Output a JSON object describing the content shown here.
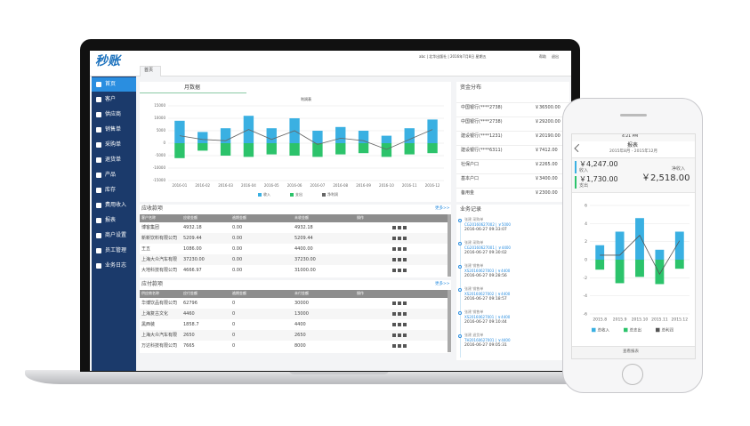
{
  "laptop": {
    "logo": "秒账",
    "tab": "首页",
    "topbar": "abc | 北华出版社 | 2016年7月8日 星期五",
    "links": [
      "帮助",
      "退出"
    ],
    "nav": [
      "首页",
      "客户",
      "供应商",
      "销售单",
      "采购单",
      "退货单",
      "产品",
      "库存",
      "费用收入",
      "报表",
      "商户设置",
      "员工管理",
      "业务日志"
    ],
    "monthly": {
      "title": "月数据",
      "chart": {
        "type": "bar",
        "title": "利润表",
        "categories": [
          "2016-01",
          "2016-02",
          "2016-03",
          "2016-04",
          "2016-05",
          "2016-06",
          "2016-07",
          "2016-08",
          "2016-09",
          "2016-10",
          "2016-11",
          "2016-12"
        ],
        "series": [
          {
            "name": "收入",
            "color": "#3ab0e2",
            "type": "bar",
            "values": [
              9000,
              4500,
              6000,
              11000,
              6000,
              10000,
              5000,
              6500,
              5000,
              3000,
              6000,
              9500
            ]
          },
          {
            "name": "支出",
            "color": "#2cc36b",
            "type": "bar",
            "values": [
              -6000,
              -3000,
              -5000,
              -5500,
              -4500,
              -5000,
              -5500,
              -4500,
              -4000,
              -5500,
              -4500,
              -4000
            ]
          },
          {
            "name": "净利润",
            "color": "#666666",
            "type": "line",
            "values": [
              3000,
              1500,
              1000,
              5500,
              1500,
              5000,
              -500,
              2000,
              1000,
              -2500,
              1500,
              5500
            ]
          }
        ],
        "ylim": [
          -15000,
          15000
        ],
        "yticks": [
          -15000,
          -10000,
          -5000,
          0,
          5000,
          10000,
          15000
        ],
        "grid": true
      }
    },
    "funds": {
      "title": "资金分布",
      "rows": [
        [
          "中国银行(****2738)",
          "￥36500.00"
        ],
        [
          "中国银行(****2738)",
          "￥29200.00"
        ],
        [
          "建设银行(****1231)",
          "￥20190.00"
        ],
        [
          "建设银行(****6311)",
          "￥7412.00"
        ],
        [
          "社保户口",
          "￥2265.00"
        ],
        [
          "基本户口",
          "￥3400.00"
        ],
        [
          "备用金",
          "￥2300.00"
        ]
      ]
    },
    "receivable": {
      "title": "应收款项",
      "more": "更多>>",
      "headers": [
        "客户名称",
        "应收金额",
        "逾期金额",
        "未收金额",
        "操作"
      ],
      "rows": [
        [
          "博客集团",
          "4932.18",
          "0.00",
          "4932.18"
        ],
        [
          "新新饮料有限公司",
          "5209.44",
          "0.00",
          "5209.44"
        ],
        [
          "王五",
          "1086.00",
          "0.00",
          "4400.00"
        ],
        [
          "上海大众汽车有限",
          "37230.00",
          "0.00",
          "37230.00"
        ],
        [
          "大地科技有限公司",
          "4666.97",
          "0.00",
          "31000.00"
        ]
      ]
    },
    "payable": {
      "title": "应付款项",
      "more": "更多>>",
      "headers": [
        "供应商名称",
        "应付金额",
        "逾期金额",
        "未付金额",
        "操作"
      ],
      "rows": [
        [
          "华博饮品有限公司",
          "62796",
          "0",
          "30000"
        ],
        [
          "上海复古文化",
          "4460",
          "0",
          "13000"
        ],
        [
          "黑西装",
          "1858.7",
          "0",
          "4400"
        ],
        [
          "上海大众汽车有限",
          "2650",
          "0",
          "2650"
        ],
        [
          "万达科技有限公司",
          "7665",
          "0",
          "8000"
        ]
      ]
    },
    "records": {
      "title": "业务记录",
      "items": [
        {
          "title": "张建 采购单",
          "code": "CG20160627002 | ￥5000",
          "time": "2016-06-27 09:33:07"
        },
        {
          "title": "张建 采购单",
          "code": "CG20160627001 | ￥4400",
          "time": "2016-06-27 09:30:02"
        },
        {
          "title": "张建 销售单",
          "code": "XS20160627003 | ￥4400",
          "time": "2016-06-27 09:28:56"
        },
        {
          "title": "张建 销售单",
          "code": "XS20160627002 | ￥4400",
          "time": "2016-06-27 09:18:57"
        },
        {
          "title": "张建 销售单",
          "code": "XS20160627001 | ￥4400",
          "time": "2016-06-27 09:10:44"
        },
        {
          "title": "张建 退货单",
          "code": "TH20160627001 | ￥4400",
          "time": "2016-06-27 09:05:31"
        }
      ]
    }
  },
  "phone": {
    "time": "4:21 PM",
    "title": "报表",
    "range": "2015年8月 - 2015年12月",
    "income": {
      "value": "￥4,247.00",
      "label": "收入"
    },
    "expense": {
      "value": "￥1,730.00",
      "label": "支出"
    },
    "net": {
      "label": "净收入",
      "value": "￥2,518.00"
    },
    "chart": {
      "type": "bar",
      "categories": [
        "2015.8",
        "2015.9",
        "2015.10",
        "2015.11",
        "2015.12"
      ],
      "series": [
        {
          "name": "总收入",
          "color": "#3ab0e2",
          "type": "bar",
          "values": [
            1.6,
            3.1,
            4.6,
            1.1,
            3.1
          ]
        },
        {
          "name": "总支出",
          "color": "#2cc36b",
          "type": "bar",
          "values": [
            -1.1,
            -2.6,
            -1.9,
            -2.7,
            -1.0
          ]
        },
        {
          "name": "总利润",
          "color": "#555555",
          "type": "line",
          "values": [
            0.5,
            0.5,
            2.7,
            -1.6,
            2.1
          ]
        }
      ],
      "ylim": [
        -6,
        6
      ],
      "yticks": [
        -6,
        -4,
        -2,
        0,
        2,
        4,
        6
      ],
      "grid": true
    },
    "footer": "查看报表"
  }
}
